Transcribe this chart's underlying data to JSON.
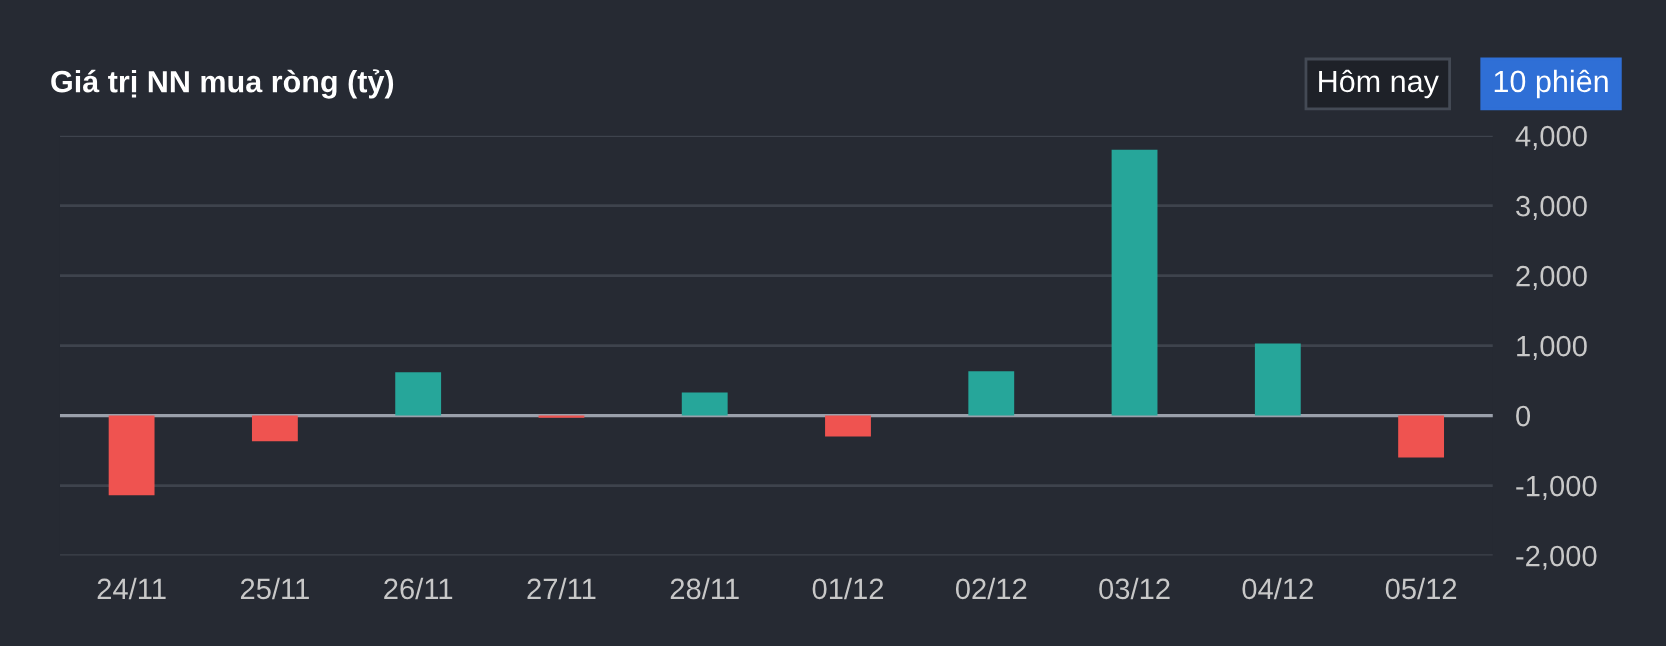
{
  "chart_data": {
    "type": "bar",
    "title": "Giá trị NN mua ròng (tỷ)",
    "categories": [
      "24/11",
      "25/11",
      "26/11",
      "27/11",
      "28/11",
      "01/12",
      "02/12",
      "03/12",
      "04/12",
      "05/12"
    ],
    "values": [
      -1140,
      -365,
      620,
      -30,
      330,
      -300,
      635,
      3800,
      1030,
      -600
    ],
    "colors": [
      "#ef5350",
      "#ef5350",
      "#26a69a",
      "#ef5350",
      "#26a69a",
      "#ef5350",
      "#26a69a",
      "#26a69a",
      "#26a69a",
      "#ef5350"
    ],
    "ylim": [
      -2000,
      4000
    ],
    "yticks": [
      {
        "value": 4000,
        "label": "4,000"
      },
      {
        "value": 3000,
        "label": "3,000"
      },
      {
        "value": 2000,
        "label": "2,000"
      },
      {
        "value": 1000,
        "label": "1,000"
      },
      0,
      {
        "value": -1000,
        "label": "-1,000"
      },
      {
        "value": -2000,
        "label": "-2,000"
      }
    ],
    "grid": "y",
    "annotations": [
      "Hôm nay",
      "10 phiên"
    ]
  }
}
